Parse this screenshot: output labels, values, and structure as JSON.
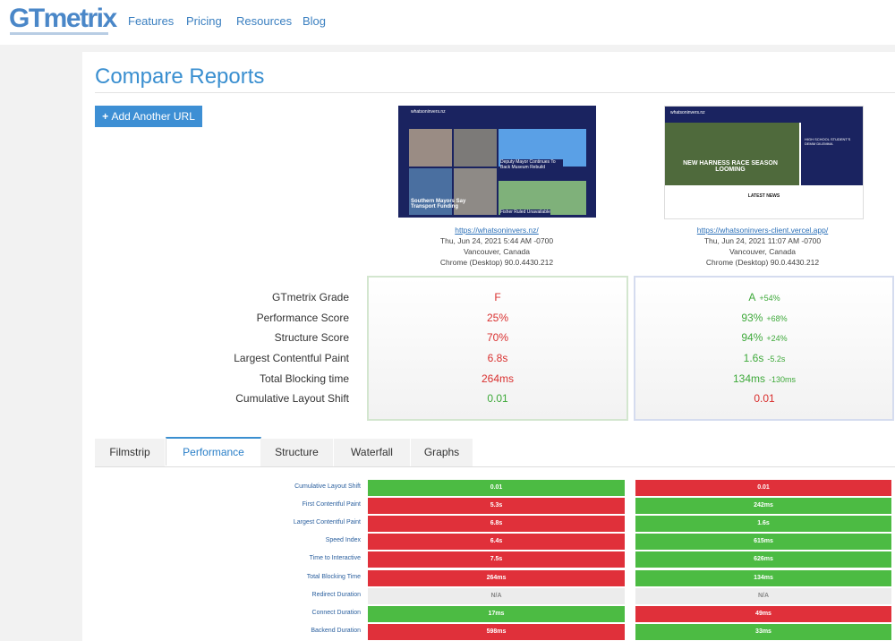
{
  "nav": {
    "logo": "GTmetrix",
    "links": [
      "Features",
      "Pricing",
      "Resources",
      "Blog"
    ]
  },
  "page_title": "Compare Reports",
  "add_button": "Add Another URL",
  "reports": [
    {
      "url": "https://whatsoninvers.nz/",
      "date": "Thu, Jun 24, 2021 5:44 AM -0700",
      "location": "Vancouver, Canada",
      "browser": "Chrome (Desktop) 90.0.4430.212",
      "thumb_site": "whatsoninvers.nz",
      "thumb_headlines": [
        "Deputy Mayor Continues To Back Museum Rebuild",
        "Southern Mayors Say Transport Funding",
        "Fisher Ruled Unavailable"
      ]
    },
    {
      "url": "https://whatsoninvers-client.vercel.app/",
      "date": "Thu, Jun 24, 2021 11:07 AM -0700",
      "location": "Vancouver, Canada",
      "browser": "Chrome (Desktop) 90.0.4430.212",
      "thumb_site": "whatsoninvers.nz",
      "thumb_headlines": [
        "NEW HARNESS RACE SEASON LOOMING",
        "LATEST NEWS",
        "HIGH SCHOOL STUDENT'S DEMM DILEMMA"
      ]
    }
  ],
  "summary": {
    "labels": [
      "GTmetrix Grade",
      "Performance Score",
      "Structure Score",
      "Largest Contentful Paint",
      "Total Blocking time",
      "Cumulative Layout Shift"
    ],
    "columns": [
      [
        {
          "value": "F",
          "status": "bad"
        },
        {
          "value": "25%",
          "status": "bad"
        },
        {
          "value": "70%",
          "status": "bad"
        },
        {
          "value": "6.8s",
          "status": "bad"
        },
        {
          "value": "264ms",
          "status": "bad"
        },
        {
          "value": "0.01",
          "status": "good"
        }
      ],
      [
        {
          "value": "A",
          "delta": "+54%",
          "status": "good"
        },
        {
          "value": "93%",
          "delta": "+68%",
          "status": "good"
        },
        {
          "value": "94%",
          "delta": "+24%",
          "status": "good"
        },
        {
          "value": "1.6s",
          "delta": "-5.2s",
          "status": "good"
        },
        {
          "value": "134ms",
          "delta": "-130ms",
          "status": "good"
        },
        {
          "value": "0.01",
          "status": "bad"
        }
      ]
    ]
  },
  "tabs": [
    "Filmstrip",
    "Performance",
    "Structure",
    "Waterfall",
    "Graphs"
  ],
  "active_tab": 1,
  "metrics": {
    "labels": [
      "Cumulative Layout Shift",
      "First Contentful Paint",
      "Largest Contentful Paint",
      "Speed Index",
      "Time to Interactive",
      "Total Blocking Time",
      "Redirect Duration",
      "Connect Duration",
      "Backend Duration"
    ],
    "columns": [
      [
        {
          "value": "0.01",
          "status": "good"
        },
        {
          "value": "5.3s",
          "status": "bad"
        },
        {
          "value": "6.8s",
          "status": "bad"
        },
        {
          "value": "6.4s",
          "status": "bad"
        },
        {
          "value": "7.5s",
          "status": "bad"
        },
        {
          "value": "264ms",
          "status": "bad"
        },
        {
          "value": "N/A",
          "status": "na"
        },
        {
          "value": "17ms",
          "status": "good"
        },
        {
          "value": "598ms",
          "status": "bad"
        }
      ],
      [
        {
          "value": "0.01",
          "status": "bad"
        },
        {
          "value": "242ms",
          "status": "good"
        },
        {
          "value": "1.6s",
          "status": "good"
        },
        {
          "value": "615ms",
          "status": "good"
        },
        {
          "value": "626ms",
          "status": "good"
        },
        {
          "value": "134ms",
          "status": "good"
        },
        {
          "value": "N/A",
          "status": "na"
        },
        {
          "value": "49ms",
          "status": "bad"
        },
        {
          "value": "33ms",
          "status": "good"
        }
      ]
    ]
  }
}
